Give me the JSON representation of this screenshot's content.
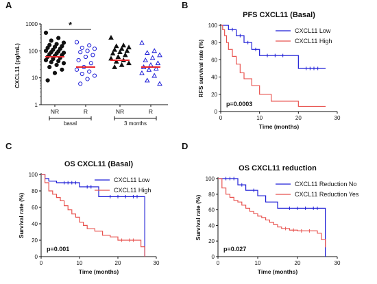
{
  "colors": {
    "blue": "#1c1cd6",
    "red": "#e8524e",
    "black": "#111111",
    "median": "#e8242a"
  },
  "chart_data": [
    {
      "panel": "A",
      "type": "scatter",
      "title": "",
      "ylabel": "CXCL11 (pg/mL)",
      "yscale": "log",
      "ylim": [
        1,
        1000
      ],
      "yticks": [
        "1",
        "10",
        "100",
        "1000"
      ],
      "categories": [
        "NR",
        "R",
        "NR",
        "R"
      ],
      "groups": [
        "basal",
        "3 months"
      ],
      "significance": "*",
      "series": [
        {
          "name": "",
          "marker": "filled-circle",
          "color": "#111111",
          "median": 60,
          "values": [
            470,
            300,
            240,
            200,
            180,
            165,
            150,
            140,
            130,
            120,
            110,
            100,
            95,
            90,
            85,
            80,
            75,
            70,
            65,
            60,
            55,
            50,
            45,
            42,
            38,
            35,
            30,
            25,
            20,
            15,
            8
          ]
        },
        {
          "name": "",
          "marker": "open-circle",
          "color": "#1c1cd6",
          "median": 25,
          "values": [
            210,
            160,
            130,
            120,
            100,
            90,
            70,
            60,
            45,
            35,
            25,
            20,
            17,
            14,
            12,
            9,
            6
          ]
        },
        {
          "name": "",
          "marker": "filled-triangle",
          "color": "#111111",
          "median": 45,
          "values": [
            310,
            160,
            150,
            135,
            120,
            110,
            100,
            90,
            80,
            70,
            60,
            52,
            45,
            40,
            35,
            30,
            25
          ]
        },
        {
          "name": "",
          "marker": "open-triangle",
          "color": "#1c1cd6",
          "median": 25,
          "values": [
            200,
            100,
            85,
            70,
            55,
            45,
            35,
            30,
            25,
            22,
            20,
            15,
            12,
            8,
            6
          ]
        }
      ]
    },
    {
      "panel": "B",
      "type": "line",
      "title": "PFS CXCL11 (Basal)",
      "xlabel": "Time (months)",
      "ylabel": "RFS survival rate  (%)",
      "xlim": [
        0,
        30
      ],
      "ylim": [
        0,
        100
      ],
      "xticks": [
        "0",
        "10",
        "20",
        "30"
      ],
      "yticks": [
        "0",
        "20",
        "40",
        "60",
        "80",
        "100"
      ],
      "pvalue": "p=0.0003",
      "legend": "top-right",
      "series": [
        {
          "name": "CXCL11 Low",
          "color": "#1c1cd6",
          "x": [
            0,
            2,
            4,
            6,
            8,
            10,
            20,
            27
          ],
          "y": [
            100,
            95,
            88,
            80,
            72,
            65,
            50,
            50
          ],
          "censor_x": [
            3,
            5,
            7,
            9,
            12,
            14,
            16,
            22,
            23,
            24,
            25
          ]
        },
        {
          "name": "CXCL11 High",
          "color": "#e8524e",
          "x": [
            0,
            0.5,
            1,
            1.5,
            2,
            3,
            4,
            5,
            6,
            8,
            10,
            13,
            20,
            27
          ],
          "y": [
            100,
            95,
            88,
            80,
            72,
            64,
            55,
            45,
            38,
            30,
            20,
            12,
            6,
            6
          ],
          "censor_x": []
        }
      ]
    },
    {
      "panel": "C",
      "type": "line",
      "title": "OS CXCL11 (Basal)",
      "xlabel": "Time (months)",
      "ylabel": "Survival rate  (%)",
      "xlim": [
        0,
        30
      ],
      "ylim": [
        0,
        100
      ],
      "xticks": [
        "0",
        "10",
        "20",
        "30"
      ],
      "yticks": [
        "0",
        "20",
        "40",
        "60",
        "80",
        "100"
      ],
      "pvalue": "p=0.001",
      "legend": "top-right",
      "series": [
        {
          "name": "CXCL11 Low",
          "color": "#1c1cd6",
          "x": [
            0,
            1,
            2,
            4,
            10,
            15,
            27,
            27
          ],
          "y": [
            100,
            95,
            92,
            90,
            85,
            73,
            73,
            0
          ],
          "censor_x": [
            6,
            7,
            8,
            9,
            12,
            13,
            18,
            20,
            22,
            24,
            25
          ]
        },
        {
          "name": "CXCL11 High",
          "color": "#e8524e",
          "x": [
            0,
            1,
            2,
            3,
            4,
            5,
            6,
            7,
            8,
            9,
            10,
            11,
            12,
            14,
            16,
            18,
            20,
            25,
            26,
            27
          ],
          "y": [
            100,
            90,
            80,
            76,
            72,
            68,
            62,
            57,
            52,
            48,
            42,
            38,
            34,
            31,
            26,
            24,
            20,
            20,
            12,
            0
          ],
          "censor_x": [
            21,
            23,
            24
          ]
        }
      ]
    },
    {
      "panel": "D",
      "type": "line",
      "title": "OS CXCL11 reduction",
      "xlabel": "Time (months)",
      "ylabel": "Survival rate  (%)",
      "xlim": [
        0,
        30
      ],
      "ylim": [
        0,
        100
      ],
      "xticks": [
        "0",
        "10",
        "20",
        "30"
      ],
      "yticks": [
        "0",
        "20",
        "40",
        "60",
        "80",
        "100"
      ],
      "pvalue": "p=0.027",
      "legend": "top-right",
      "series": [
        {
          "name": "CXCL11 Reduction No",
          "color": "#1c1cd6",
          "x": [
            0,
            5,
            7,
            10,
            12,
            15,
            27,
            27
          ],
          "y": [
            100,
            92,
            85,
            78,
            70,
            62,
            62,
            0
          ],
          "censor_x": [
            2,
            3,
            4,
            6,
            9,
            18,
            20,
            22,
            24,
            25
          ]
        },
        {
          "name": "CXCL11 Reduction Yes",
          "color": "#e8524e",
          "x": [
            0,
            1,
            2,
            3,
            4,
            5,
            6,
            7,
            8,
            9,
            10,
            11,
            12,
            13,
            14,
            15,
            16,
            18,
            20,
            25,
            26,
            27
          ],
          "y": [
            100,
            88,
            80,
            76,
            72,
            70,
            66,
            62,
            58,
            55,
            52,
            50,
            47,
            44,
            41,
            38,
            36,
            34,
            33,
            30,
            22,
            12
          ],
          "censor_x": [
            17,
            19,
            21,
            23
          ]
        }
      ]
    }
  ]
}
